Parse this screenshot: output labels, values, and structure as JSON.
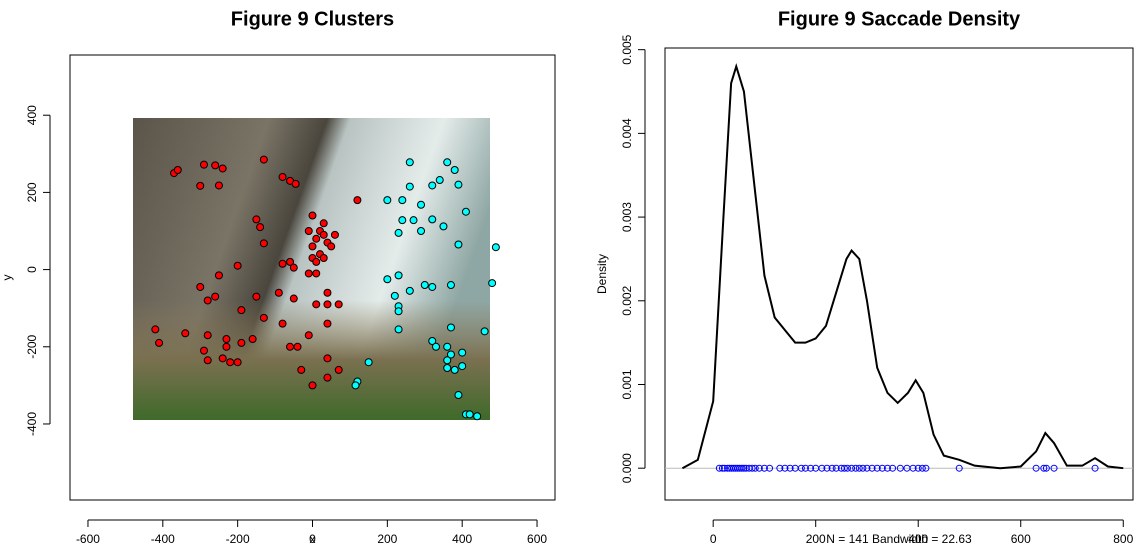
{
  "chart_data": [
    {
      "type": "scatter",
      "title": "Figure 9 Clusters",
      "xlabel": "x",
      "ylabel": "y",
      "xlim": [
        -648,
        648
      ],
      "ylim": [
        -597,
        556
      ],
      "xticks": [
        -600,
        -400,
        -200,
        0,
        200,
        400,
        600
      ],
      "yticks": [
        -400,
        -200,
        0,
        200,
        400
      ],
      "series": [
        {
          "color": "#ff0000",
          "x": [
            -420,
            -410,
            -370,
            -360,
            -290,
            -300,
            -250,
            -260,
            -240,
            -130,
            -80,
            -60,
            -45,
            -150,
            -140,
            -130,
            -200,
            -250,
            -260,
            -300,
            -280,
            -190,
            -150,
            -90,
            -50,
            -160,
            -130,
            -80,
            -60,
            -40,
            -190,
            -230,
            -240,
            -280,
            -290,
            -340,
            -280,
            -230,
            -220,
            -200,
            -10,
            40,
            10,
            40,
            70,
            40,
            0,
            10,
            20,
            30,
            40,
            0,
            10,
            20,
            30,
            50,
            60,
            -10,
            0,
            30,
            -60,
            -80,
            -50,
            10,
            -10,
            120,
            40,
            -30,
            40,
            70,
            0
          ],
          "y": [
            -155,
            -190,
            250,
            258,
            272,
            217,
            218,
            270,
            262,
            285,
            240,
            230,
            222,
            130,
            110,
            68,
            10,
            -15,
            -70,
            -45,
            -80,
            -105,
            -70,
            -60,
            -75,
            -180,
            -125,
            -140,
            -200,
            -200,
            -190,
            -200,
            -230,
            -170,
            -210,
            -165,
            -235,
            -180,
            -240,
            -240,
            -170,
            -140,
            -90,
            -90,
            -90,
            -60,
            60,
            80,
            100,
            90,
            70,
            30,
            20,
            40,
            30,
            60,
            90,
            100,
            140,
            120,
            20,
            15,
            5,
            -10,
            -10,
            180,
            -230,
            -260,
            -280,
            -260,
            -300
          ]
        },
        {
          "color": "#00ffff",
          "x": [
            260,
            360,
            380,
            340,
            320,
            260,
            200,
            240,
            390,
            290,
            410,
            240,
            270,
            320,
            230,
            290,
            350,
            490,
            390,
            200,
            230,
            260,
            220,
            230,
            230,
            370,
            300,
            320,
            480,
            230,
            370,
            460,
            320,
            330,
            360,
            400,
            370,
            360,
            360,
            380,
            400,
            150,
            120,
            115,
            390,
            410,
            420,
            440
          ],
          "y": [
            278,
            278,
            258,
            232,
            218,
            215,
            180,
            180,
            220,
            168,
            150,
            128,
            128,
            130,
            95,
            100,
            112,
            58,
            65,
            -25,
            -15,
            -55,
            -68,
            -95,
            -108,
            -40,
            -40,
            -45,
            -35,
            -155,
            -150,
            -160,
            -185,
            -200,
            -200,
            -215,
            -220,
            -235,
            -255,
            -260,
            -250,
            -240,
            -290,
            -300,
            -325,
            -375,
            -375,
            -380
          ]
        }
      ]
    },
    {
      "type": "density",
      "title": "Figure 9 Saccade Density",
      "ylabel": "Density",
      "xlabel": "N = 141   Bandwidth = 22.63",
      "xlim": [
        -94,
        819
      ],
      "ylim": [
        -0.00038,
        0.00502
      ],
      "xticks": [
        0,
        200,
        400,
        600,
        800
      ],
      "yticks": [
        {
          "value": 0,
          "label": "0.000"
        },
        {
          "value": 0.001,
          "label": "0.001"
        },
        {
          "value": 0.002,
          "label": "0.002"
        },
        {
          "value": 0.003,
          "label": "0.003"
        },
        {
          "value": 0.004,
          "label": "0.004"
        },
        {
          "value": 0.005,
          "label": "0.005"
        }
      ],
      "color": "#000000",
      "rug_color": "#0000ff",
      "x": [
        -60,
        -30,
        0,
        20,
        35,
        45,
        60,
        80,
        100,
        120,
        140,
        160,
        180,
        200,
        220,
        240,
        260,
        270,
        285,
        300,
        320,
        340,
        360,
        380,
        395,
        410,
        430,
        450,
        480,
        510,
        560,
        600,
        630,
        648,
        665,
        690,
        720,
        745,
        770,
        800
      ],
      "values": [
        0,
        0.0001,
        0.0008,
        0.003,
        0.0046,
        0.0048,
        0.0045,
        0.0034,
        0.0023,
        0.0018,
        0.00165,
        0.0015,
        0.0015,
        0.00155,
        0.0017,
        0.0021,
        0.0025,
        0.0026,
        0.0025,
        0.002,
        0.0012,
        0.0009,
        0.00078,
        0.0009,
        0.00105,
        0.0009,
        0.0004,
        0.00015,
        0.0001,
        3e-05,
        0,
        2e-05,
        0.0002,
        0.00042,
        0.0003,
        3e-05,
        3e-05,
        0.00012,
        2e-05,
        0
      ],
      "rug": [
        12,
        18,
        22,
        28,
        32,
        36,
        40,
        44,
        48,
        52,
        56,
        60,
        64,
        70,
        76,
        82,
        90,
        100,
        110,
        130,
        140,
        150,
        160,
        172,
        180,
        190,
        200,
        212,
        222,
        232,
        240,
        250,
        256,
        262,
        270,
        278,
        285,
        292,
        300,
        310,
        320,
        330,
        340,
        350,
        365,
        378,
        390,
        400,
        408,
        415,
        480,
        630,
        645,
        650,
        665,
        745
      ]
    }
  ]
}
